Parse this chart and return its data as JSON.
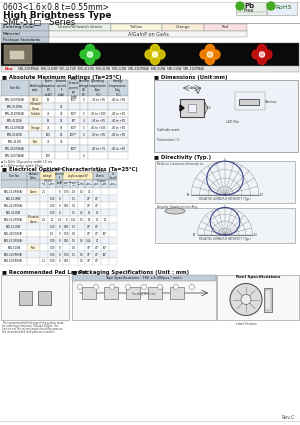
{
  "title_line1": "0603<1.6×0.8 t=0.55mm>",
  "title_line2": "High Brightness Type",
  "series": "SML-51□   Series",
  "bg_color": "#ffffff",
  "material": "AlGaInP on GaAs",
  "abs_max_title": "Absolute Maximum Ratings (Ta=25°C)",
  "elec_opt_title": "Electrical Optical Characteristics (Ta=25°C)",
  "dim_title": "Dimensions (Unit:mm)",
  "dir_title": "Directivity (Typ.)",
  "pad_title": "Recommended Pad Layout",
  "pkg_title": "Packaging Specifications (Unit : mm)",
  "rev": "Rev.C"
}
